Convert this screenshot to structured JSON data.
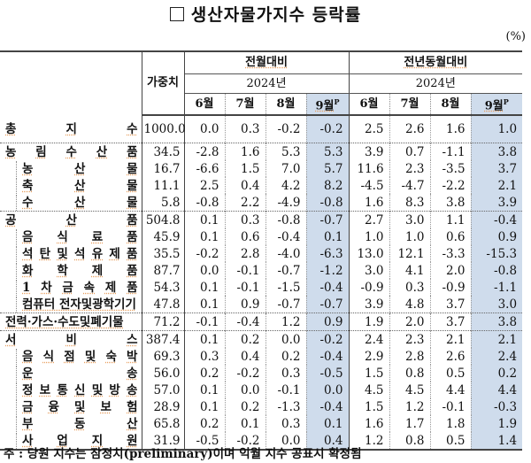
{
  "title": "생산자물가지수 등락률",
  "unit": "(%)",
  "header": {
    "weight_label": "가중치",
    "groups": [
      {
        "label": "전월대비",
        "year": "2024년",
        "months": [
          "6월",
          "7월",
          "8월",
          "9월"
        ]
      },
      {
        "label": "전년동월대비",
        "year": "2024년",
        "months": [
          "6월",
          "7월",
          "8월",
          "9월"
        ]
      }
    ],
    "preliminary_mark": "P"
  },
  "rows": [
    {
      "label": "총지수",
      "label_chars": [
        "총",
        "지",
        "수"
      ],
      "level": 0,
      "weight": "1000.0",
      "mom": [
        "0.0",
        "0.3",
        "-0.2",
        "-0.2"
      ],
      "yoy": [
        "2.5",
        "2.6",
        "1.6",
        "1.0"
      ]
    },
    {
      "label": "농림수산품",
      "label_chars": [
        "농",
        "림",
        "수",
        "산",
        "품"
      ],
      "level": 0,
      "weight": "34.5",
      "mom": [
        "-2.8",
        "1.6",
        "5.3",
        "5.3"
      ],
      "yoy": [
        "3.9",
        "0.7",
        "-1.1",
        "3.8"
      ]
    },
    {
      "label": "농산물",
      "label_chars": [
        "농",
        "산",
        "물"
      ],
      "level": 1,
      "weight": "16.7",
      "mom": [
        "-6.6",
        "1.5",
        "7.0",
        "5.7"
      ],
      "yoy": [
        "11.6",
        "2.3",
        "-3.5",
        "3.7"
      ]
    },
    {
      "label": "축산물",
      "label_chars": [
        "축",
        "산",
        "물"
      ],
      "level": 1,
      "weight": "11.1",
      "mom": [
        "2.5",
        "0.4",
        "4.2",
        "8.2"
      ],
      "yoy": [
        "-4.5",
        "-4.7",
        "-2.2",
        "2.1"
      ]
    },
    {
      "label": "수산물",
      "label_chars": [
        "수",
        "산",
        "물"
      ],
      "level": 1,
      "weight": "5.8",
      "mom": [
        "-0.8",
        "2.2",
        "-4.9",
        "-0.8"
      ],
      "yoy": [
        "1.6",
        "8.3",
        "3.8",
        "3.9"
      ]
    },
    {
      "label": "공산품",
      "label_chars": [
        "공",
        "산",
        "품"
      ],
      "level": 0,
      "weight": "504.8",
      "mom": [
        "0.1",
        "0.3",
        "-0.8",
        "-0.7"
      ],
      "yoy": [
        "2.7",
        "3.0",
        "1.1",
        "-0.4"
      ]
    },
    {
      "label": "음식료품",
      "label_chars": [
        "음",
        "식",
        "료",
        "품"
      ],
      "level": 1,
      "weight": "45.9",
      "mom": [
        "0.1",
        "0.6",
        "-0.4",
        "0.1"
      ],
      "yoy": [
        "1.0",
        "1.0",
        "0.6",
        "0.9"
      ]
    },
    {
      "label": "석탄및석유제품",
      "label_chars": [
        "석",
        "탄",
        "및",
        "석",
        "유",
        "제",
        "품"
      ],
      "level": 1,
      "weight": "35.5",
      "mom": [
        "-0.2",
        "2.8",
        "-4.0",
        "-6.3"
      ],
      "yoy": [
        "13.0",
        "12.1",
        "-3.3",
        "-15.3"
      ]
    },
    {
      "label": "화학제품",
      "label_chars": [
        "화",
        "학",
        "제",
        "품"
      ],
      "level": 1,
      "weight": "87.7",
      "mom": [
        "0.0",
        "-0.1",
        "-0.7",
        "-1.2"
      ],
      "yoy": [
        "3.0",
        "4.1",
        "2.0",
        "-0.8"
      ]
    },
    {
      "label": "1차금속제품",
      "label_chars": [
        "1",
        "차",
        "금",
        "속",
        "제",
        "품"
      ],
      "level": 1,
      "weight": "54.3",
      "mom": [
        "0.1",
        "-0.1",
        "-1.5",
        "-0.4"
      ],
      "yoy": [
        "-0.9",
        "0.3",
        "-0.9",
        "-1.1"
      ]
    },
    {
      "label": "컴퓨터전자및광학기기",
      "label_chars": [
        "컴퓨터 전자및광학기기"
      ],
      "level": 1,
      "weight": "47.8",
      "mom": [
        "0.1",
        "0.9",
        "-0.7",
        "-0.7"
      ],
      "yoy": [
        "3.9",
        "4.8",
        "3.7",
        "3.0"
      ]
    },
    {
      "label": "전력·가스·수도및폐기물",
      "label_chars": [
        "전력·가스·수도및폐기물"
      ],
      "level": 0,
      "weight": "71.2",
      "mom": [
        "-0.1",
        "-0.4",
        "1.2",
        "0.9"
      ],
      "yoy": [
        "1.9",
        "2.0",
        "3.7",
        "3.8"
      ]
    },
    {
      "label": "서비스",
      "label_chars": [
        "서",
        "비",
        "스"
      ],
      "level": 0,
      "weight": "387.4",
      "mom": [
        "0.1",
        "0.2",
        "0.0",
        "-0.2"
      ],
      "yoy": [
        "2.4",
        "2.3",
        "2.1",
        "2.1"
      ]
    },
    {
      "label": "음식점및숙박",
      "label_chars": [
        "음",
        "식",
        "점",
        "및",
        "숙",
        "박"
      ],
      "level": 1,
      "weight": "69.3",
      "mom": [
        "0.3",
        "0.4",
        "0.2",
        "-0.4"
      ],
      "yoy": [
        "2.9",
        "2.8",
        "2.6",
        "2.4"
      ]
    },
    {
      "label": "운송",
      "label_chars": [
        "운",
        "송"
      ],
      "level": 1,
      "weight": "56.0",
      "mom": [
        "0.2",
        "-0.2",
        "0.3",
        "-0.5"
      ],
      "yoy": [
        "1.5",
        "0.8",
        "0.5",
        "0.2"
      ]
    },
    {
      "label": "정보통신및방송",
      "label_chars": [
        "정",
        "보",
        "통",
        "신",
        "및",
        "방",
        "송"
      ],
      "level": 1,
      "weight": "57.0",
      "mom": [
        "0.1",
        "0.0",
        "-0.1",
        "0.0"
      ],
      "yoy": [
        "4.5",
        "4.5",
        "4.4",
        "4.4"
      ]
    },
    {
      "label": "금융및보험",
      "label_chars": [
        "금",
        "융",
        "및",
        "보",
        "험"
      ],
      "level": 1,
      "weight": "28.9",
      "mom": [
        "0.1",
        "0.2",
        "-1.3",
        "-0.4"
      ],
      "yoy": [
        "1.5",
        "1.2",
        "-0.1",
        "-0.3"
      ]
    },
    {
      "label": "부동산",
      "label_chars": [
        "부",
        "동",
        "산"
      ],
      "level": 1,
      "weight": "65.8",
      "mom": [
        "0.2",
        "0.1",
        "0.3",
        "0.1"
      ],
      "yoy": [
        "1.6",
        "1.7",
        "1.8",
        "1.9"
      ]
    },
    {
      "label": "사업지원",
      "label_chars": [
        "사",
        "업",
        "지",
        "원"
      ],
      "level": 1,
      "weight": "31.9",
      "mom": [
        "-0.5",
        "-0.2",
        "0.0",
        "0.4"
      ],
      "yoy": [
        "1.2",
        "0.8",
        "0.5",
        "1.4"
      ]
    }
  ],
  "note": "주 : 당원 지수는 잠정치(preliminary)이며 익월 지수 공표시 확정됨",
  "colors": {
    "highlight": "#cfdcec",
    "underline": "#e8a060"
  }
}
